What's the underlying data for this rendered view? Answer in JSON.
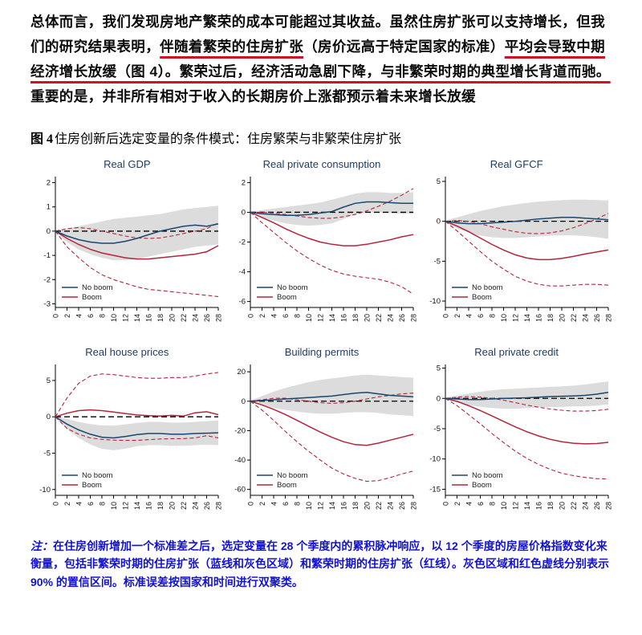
{
  "page": {
    "paragraph": {
      "segments": [
        {
          "text": "总体而言，我们发现房地产繁荣的成本可能超过其收益。虽然住房扩张可以支持增长，但我们的研究结果表明，",
          "underline": false
        },
        {
          "text": "伴随着繁荣的住房扩张",
          "underline": true
        },
        {
          "text": "（房价远高于特定国家的标准）",
          "underline": false
        },
        {
          "text": "平均会导致中期经济增长放缓（图 4）。繁荣过后，经济活动急剧下降，与非繁荣时期的典型增长背道而驰。",
          "underline": true
        },
        {
          "text": "重要的是，并非所有相对于收入的长期房价上涨都预示着未来增长放缓",
          "underline": false
        }
      ]
    },
    "figure_caption": {
      "prefix": "图 4",
      "text": "住房创新后选定变量的条件模式：住房繁荣与非繁荣住房扩张"
    },
    "note": {
      "label": "注：",
      "text": "在住房创新增加一个标准差之后，选定变量在 28 个季度内的累积脉冲响应，以 12 个季度的房屋价格指数变化来衡量，包括非繁荣时期的住房扩张（蓝线和灰色区域）和繁荣时期的住房扩张（红线）。灰色区域和红色虚线分别表示 90% 的置信区间。标准误差按国家和时间进行双聚类。"
    }
  },
  "colors": {
    "noboom": "#1a476f",
    "boom": "#b3253a",
    "band": "#dcdcdc",
    "underline": "#cf1322",
    "note_text": "#1212cf",
    "chart_title": "#1f3a5f",
    "zero_line": "#000000"
  },
  "chart_data": [
    {
      "type": "line",
      "title": "Real GDP",
      "x": [
        0,
        2,
        4,
        6,
        8,
        10,
        12,
        14,
        16,
        18,
        20,
        22,
        24,
        26,
        28
      ],
      "xticks": [
        0,
        2,
        4,
        6,
        8,
        10,
        12,
        14,
        16,
        18,
        20,
        22,
        24,
        26,
        28
      ],
      "xlim": [
        0,
        28
      ],
      "ylim": [
        -3.15,
        2.25
      ],
      "yticks": [
        -3,
        -2,
        -1,
        0,
        1,
        2
      ],
      "band": {
        "name": "No boom 90% CI",
        "upper": [
          0.05,
          0.1,
          0.2,
          0.3,
          0.4,
          0.5,
          0.55,
          0.6,
          0.65,
          0.7,
          0.8,
          0.9,
          0.95,
          1.0,
          1.05
        ],
        "lower": [
          -0.05,
          -0.45,
          -0.75,
          -0.95,
          -1.1,
          -1.2,
          -1.2,
          -1.15,
          -1.05,
          -0.95,
          -0.85,
          -0.75,
          -0.65,
          -0.6,
          -0.55
        ]
      },
      "series": [
        {
          "name": "No boom",
          "style": "solid",
          "color_key": "noboom",
          "values": [
            0,
            -0.2,
            -0.35,
            -0.45,
            -0.5,
            -0.5,
            -0.42,
            -0.3,
            -0.15,
            0.0,
            0.1,
            0.2,
            0.25,
            0.2,
            0.3
          ]
        },
        {
          "name": "Boom",
          "style": "solid",
          "color_key": "boom",
          "values": [
            0,
            -0.3,
            -0.55,
            -0.75,
            -0.9,
            -1.0,
            -1.1,
            -1.15,
            -1.15,
            -1.1,
            -1.05,
            -1.0,
            -0.95,
            -0.85,
            -0.6
          ]
        },
        {
          "name": "Boom 90% upper",
          "style": "dashed",
          "color_key": "boom",
          "values": [
            0,
            0.1,
            0.15,
            0.1,
            0.0,
            -0.1,
            -0.2,
            -0.28,
            -0.3,
            -0.28,
            -0.2,
            -0.1,
            0.0,
            0.1,
            0.35
          ]
        },
        {
          "name": "Boom 90% lower",
          "style": "dashed",
          "color_key": "boom",
          "values": [
            0,
            -0.65,
            -1.1,
            -1.5,
            -1.8,
            -2.0,
            -2.15,
            -2.3,
            -2.4,
            -2.45,
            -2.5,
            -2.55,
            -2.6,
            -2.65,
            -2.7
          ]
        }
      ]
    },
    {
      "type": "line",
      "title": "Real private consumption",
      "x": [
        0,
        2,
        4,
        6,
        8,
        10,
        12,
        14,
        16,
        18,
        20,
        22,
        24,
        26,
        28
      ],
      "xticks": [
        0,
        2,
        4,
        6,
        8,
        10,
        12,
        14,
        16,
        18,
        20,
        22,
        24,
        26,
        28
      ],
      "xlim": [
        0,
        28
      ],
      "ylim": [
        -6.4,
        2.4
      ],
      "yticks": [
        -6,
        -4,
        -2,
        0,
        2
      ],
      "band": {
        "name": "No boom 90% CI",
        "upper": [
          0.05,
          0.15,
          0.25,
          0.35,
          0.45,
          0.55,
          0.65,
          0.85,
          1.05,
          1.25,
          1.35,
          1.35,
          1.3,
          1.3,
          1.35
        ],
        "lower": [
          -0.05,
          -0.35,
          -0.55,
          -0.75,
          -0.85,
          -0.9,
          -0.85,
          -0.75,
          -0.45,
          -0.15,
          0.0,
          0.0,
          -0.05,
          -0.1,
          -0.1
        ]
      },
      "series": [
        {
          "name": "No boom",
          "style": "solid",
          "color_key": "noboom",
          "values": [
            0,
            -0.1,
            -0.15,
            -0.2,
            -0.2,
            -0.15,
            -0.05,
            0.05,
            0.35,
            0.6,
            0.7,
            0.7,
            0.65,
            0.6,
            0.6
          ]
        },
        {
          "name": "Boom",
          "style": "solid",
          "color_key": "boom",
          "values": [
            0,
            -0.35,
            -0.7,
            -1.1,
            -1.45,
            -1.75,
            -2.0,
            -2.15,
            -2.25,
            -2.25,
            -2.15,
            -2.0,
            -1.85,
            -1.65,
            -1.5
          ]
        },
        {
          "name": "Boom 90% upper",
          "style": "dashed",
          "color_key": "boom",
          "values": [
            0,
            0.0,
            -0.05,
            -0.15,
            -0.25,
            -0.35,
            -0.4,
            -0.4,
            -0.3,
            -0.15,
            0.1,
            0.4,
            0.75,
            1.15,
            1.6
          ]
        },
        {
          "name": "Boom 90% lower",
          "style": "dashed",
          "color_key": "boom",
          "values": [
            0,
            -0.7,
            -1.35,
            -2.0,
            -2.6,
            -3.1,
            -3.55,
            -3.9,
            -4.15,
            -4.3,
            -4.4,
            -4.5,
            -4.7,
            -5.0,
            -5.5
          ]
        }
      ]
    },
    {
      "type": "line",
      "title": "Real GFCF",
      "x": [
        0,
        2,
        4,
        6,
        8,
        10,
        12,
        14,
        16,
        18,
        20,
        22,
        24,
        26,
        28
      ],
      "xticks": [
        0,
        2,
        4,
        6,
        8,
        10,
        12,
        14,
        16,
        18,
        20,
        22,
        24,
        26,
        28
      ],
      "xlim": [
        0,
        28
      ],
      "ylim": [
        -10.8,
        5.6
      ],
      "yticks": [
        -10,
        -5,
        0,
        5
      ],
      "band": {
        "name": "No boom 90% CI",
        "upper": [
          0.1,
          0.5,
          0.9,
          1.3,
          1.6,
          1.9,
          2.1,
          2.3,
          2.45,
          2.55,
          2.65,
          2.7,
          2.7,
          2.65,
          2.6
        ],
        "lower": [
          -0.1,
          -0.9,
          -1.4,
          -1.8,
          -2.0,
          -2.1,
          -2.1,
          -2.0,
          -1.9,
          -1.8,
          -1.75,
          -1.75,
          -1.85,
          -2.0,
          -2.2
        ]
      },
      "series": [
        {
          "name": "No boom",
          "style": "solid",
          "color_key": "noboom",
          "values": [
            0,
            -0.2,
            -0.3,
            -0.3,
            -0.2,
            -0.1,
            0.0,
            0.15,
            0.3,
            0.4,
            0.5,
            0.5,
            0.4,
            0.3,
            0.2
          ]
        },
        {
          "name": "Boom",
          "style": "solid",
          "color_key": "boom",
          "values": [
            0,
            -0.6,
            -1.3,
            -2.1,
            -2.9,
            -3.6,
            -4.2,
            -4.6,
            -4.8,
            -4.8,
            -4.65,
            -4.4,
            -4.1,
            -3.85,
            -3.6
          ]
        },
        {
          "name": "Boom 90% upper",
          "style": "dashed",
          "color_key": "boom",
          "values": [
            0,
            0.1,
            0.0,
            -0.3,
            -0.7,
            -1.0,
            -1.3,
            -1.5,
            -1.55,
            -1.45,
            -1.2,
            -0.8,
            -0.3,
            0.3,
            1.0
          ]
        },
        {
          "name": "Boom 90% lower",
          "style": "dashed",
          "color_key": "boom",
          "values": [
            0,
            -1.2,
            -2.5,
            -3.8,
            -5.0,
            -6.0,
            -6.9,
            -7.5,
            -7.9,
            -8.1,
            -8.1,
            -8.0,
            -7.9,
            -7.9,
            -8.0
          ]
        }
      ]
    },
    {
      "type": "line",
      "title": "Real house prices",
      "x": [
        0,
        2,
        4,
        6,
        8,
        10,
        12,
        14,
        16,
        18,
        20,
        22,
        24,
        26,
        28
      ],
      "xticks": [
        0,
        2,
        4,
        6,
        8,
        10,
        12,
        14,
        16,
        18,
        20,
        22,
        24,
        26,
        28
      ],
      "xlim": [
        0,
        28
      ],
      "ylim": [
        -10.8,
        7.2
      ],
      "yticks": [
        -10,
        -5,
        0,
        5
      ],
      "band": {
        "name": "No boom 90% CI",
        "upper": [
          0.1,
          -0.3,
          -0.7,
          -1.0,
          -1.2,
          -1.2,
          -1.05,
          -0.85,
          -0.7,
          -0.7,
          -0.8,
          -0.8,
          -0.7,
          -0.6,
          -0.5
        ],
        "lower": [
          -0.1,
          -1.7,
          -2.9,
          -3.8,
          -4.4,
          -4.6,
          -4.4,
          -4.05,
          -3.9,
          -3.9,
          -4.0,
          -4.0,
          -3.9,
          -3.85,
          -3.9
        ]
      },
      "series": [
        {
          "name": "No boom",
          "style": "solid",
          "color_key": "noboom",
          "values": [
            0,
            -1.0,
            -1.8,
            -2.4,
            -2.8,
            -2.9,
            -2.7,
            -2.45,
            -2.3,
            -2.3,
            -2.4,
            -2.4,
            -2.3,
            -2.25,
            -2.2
          ]
        },
        {
          "name": "Boom",
          "style": "solid",
          "color_key": "boom",
          "values": [
            0,
            0.5,
            0.85,
            0.95,
            0.85,
            0.65,
            0.45,
            0.25,
            0.15,
            0.1,
            0.2,
            0.1,
            0.55,
            0.7,
            0.3
          ]
        },
        {
          "name": "Boom 90% upper",
          "style": "dashed",
          "color_key": "boom",
          "values": [
            0,
            2.6,
            4.6,
            5.6,
            5.9,
            5.8,
            5.6,
            5.4,
            5.3,
            5.3,
            5.4,
            5.4,
            5.6,
            5.9,
            6.1
          ]
        },
        {
          "name": "Boom 90% lower",
          "style": "dashed",
          "color_key": "boom",
          "values": [
            0,
            -1.6,
            -2.4,
            -2.9,
            -3.1,
            -3.2,
            -3.25,
            -3.25,
            -3.15,
            -3.05,
            -3.0,
            -3.0,
            -2.9,
            -2.6,
            -2.9
          ]
        }
      ]
    },
    {
      "type": "line",
      "title": "Building permits",
      "x": [
        0,
        2,
        4,
        6,
        8,
        10,
        12,
        14,
        16,
        18,
        20,
        22,
        24,
        26,
        28
      ],
      "xticks": [
        0,
        2,
        4,
        6,
        8,
        10,
        12,
        14,
        16,
        18,
        20,
        22,
        24,
        26,
        28
      ],
      "xlim": [
        0,
        28
      ],
      "ylim": [
        -64,
        25
      ],
      "yticks": [
        -60,
        -40,
        -20,
        0,
        20
      ],
      "band": {
        "name": "No boom 90% CI",
        "upper": [
          0.5,
          3.5,
          6.5,
          9,
          11,
          13,
          14.5,
          15.5,
          16.5,
          17.5,
          18,
          17.5,
          17,
          16.5,
          16
        ],
        "lower": [
          -0.5,
          -2.5,
          -4.5,
          -6,
          -7,
          -8,
          -8.5,
          -8.5,
          -8,
          -7.5,
          -7.5,
          -8,
          -9,
          -9.5,
          -10
        ]
      },
      "series": [
        {
          "name": "No boom",
          "style": "solid",
          "color_key": "noboom",
          "values": [
            0,
            0.5,
            1,
            1.5,
            2,
            2.5,
            3,
            3.5,
            4.5,
            5.5,
            6,
            5,
            4,
            3.5,
            3
          ]
        },
        {
          "name": "Boom",
          "style": "solid",
          "color_key": "boom",
          "values": [
            0,
            -2.5,
            -5.5,
            -9,
            -13,
            -17,
            -21,
            -24.5,
            -27.5,
            -29.5,
            -30,
            -28.5,
            -26.5,
            -24.5,
            -22.5
          ]
        },
        {
          "name": "Boom 90% upper",
          "style": "dashed",
          "color_key": "boom",
          "values": [
            0,
            1,
            2,
            2,
            1,
            0,
            -1,
            -1.5,
            -1,
            0,
            1.5,
            3,
            4,
            5,
            5.5
          ]
        },
        {
          "name": "Boom 90% lower",
          "style": "dashed",
          "color_key": "boom",
          "values": [
            0,
            -6,
            -13,
            -20.5,
            -27.5,
            -34,
            -40,
            -45.5,
            -49.5,
            -52.5,
            -54.5,
            -54,
            -52,
            -49.5,
            -47.5
          ]
        }
      ]
    },
    {
      "type": "line",
      "title": "Real private credit",
      "x": [
        0,
        2,
        4,
        6,
        8,
        10,
        12,
        14,
        16,
        18,
        20,
        22,
        24,
        26,
        28
      ],
      "xticks": [
        0,
        2,
        4,
        6,
        8,
        10,
        12,
        14,
        16,
        18,
        20,
        22,
        24,
        26,
        28
      ],
      "xlim": [
        0,
        28
      ],
      "ylim": [
        -16,
        5.6
      ],
      "yticks": [
        -15,
        -10,
        -5,
        0,
        5
      ],
      "band": {
        "name": "No boom 90% CI",
        "upper": [
          0.1,
          0.45,
          0.8,
          1.1,
          1.35,
          1.5,
          1.6,
          1.7,
          1.8,
          1.9,
          2.0,
          2.1,
          2.3,
          2.55,
          2.8
        ],
        "lower": [
          -0.1,
          -0.65,
          -1.1,
          -1.4,
          -1.6,
          -1.7,
          -1.7,
          -1.6,
          -1.5,
          -1.45,
          -1.4,
          -1.35,
          -1.3,
          -1.2,
          -1.0
        ]
      },
      "series": [
        {
          "name": "No boom",
          "style": "solid",
          "color_key": "noboom",
          "values": [
            0,
            -0.1,
            -0.2,
            -0.2,
            -0.1,
            0.0,
            0.05,
            0.1,
            0.2,
            0.3,
            0.35,
            0.4,
            0.5,
            0.7,
            1.0
          ]
        },
        {
          "name": "Boom",
          "style": "solid",
          "color_key": "boom",
          "values": [
            0,
            -0.5,
            -1.2,
            -2.0,
            -2.9,
            -3.8,
            -4.7,
            -5.5,
            -6.2,
            -6.75,
            -7.15,
            -7.4,
            -7.5,
            -7.45,
            -7.25
          ]
        },
        {
          "name": "Boom 90% upper",
          "style": "dashed",
          "color_key": "boom",
          "values": [
            0,
            0.2,
            0.3,
            0.2,
            0.0,
            -0.3,
            -0.7,
            -1.1,
            -1.45,
            -1.75,
            -1.95,
            -2.1,
            -2.1,
            -2.0,
            -1.8
          ]
        },
        {
          "name": "Boom 90% lower",
          "style": "dashed",
          "color_key": "boom",
          "values": [
            0,
            -1.2,
            -2.7,
            -4.2,
            -5.8,
            -7.3,
            -8.7,
            -9.9,
            -10.9,
            -11.7,
            -12.35,
            -12.75,
            -13.05,
            -13.25,
            -13.3
          ]
        }
      ]
    }
  ]
}
